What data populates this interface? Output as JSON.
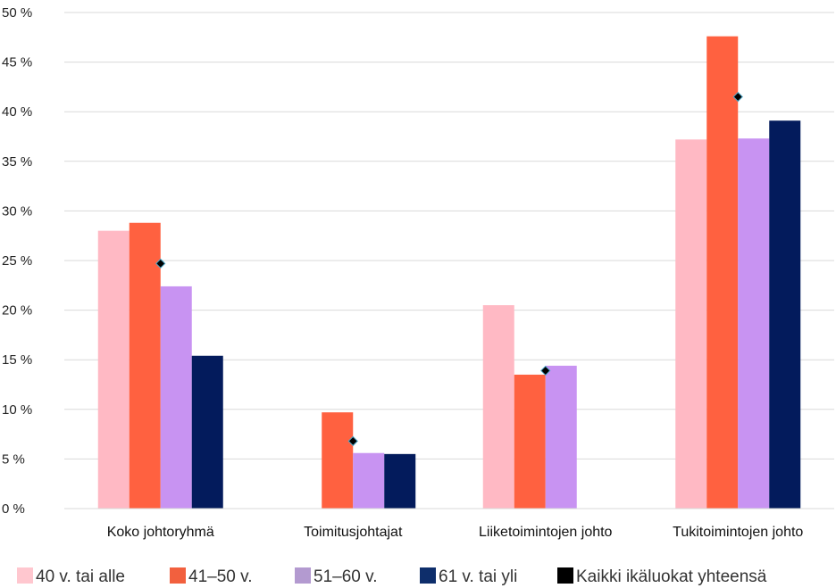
{
  "chart_data": {
    "type": "bar",
    "title": "",
    "xlabel": "",
    "ylabel": "",
    "ylim": [
      0,
      50
    ],
    "yticks": [
      "0 %",
      "5 %",
      "10 %",
      "15 %",
      "20 %",
      "25 %",
      "30 %",
      "35 %",
      "40 %",
      "45 %",
      "50 %"
    ],
    "grid": true,
    "legend_position": "bottom",
    "categories": [
      "Koko johtoryhmä",
      "Toimitusjohtajat",
      "Liiketoimintojen johto",
      "Tukitoimintojen johto"
    ],
    "series": [
      {
        "name": "40 v. tai alle",
        "color": "#ffb9c4",
        "values": [
          28.0,
          0,
          20.5,
          37.2
        ]
      },
      {
        "name": "41–50 v.",
        "color": "#ff6140",
        "values": [
          28.8,
          9.7,
          13.5,
          47.6
        ]
      },
      {
        "name": "51–60 v.",
        "color": "#c893f2",
        "values": [
          22.4,
          5.6,
          14.4,
          37.3
        ]
      },
      {
        "name": "61 v. tai yli",
        "color": "#031b5c",
        "values": [
          15.4,
          5.5,
          0,
          39.1
        ]
      }
    ],
    "total_series": {
      "name": "Kaikki ikäluokat yhteensä",
      "marker": "diamond",
      "color": "#000000",
      "values": [
        24.7,
        6.8,
        13.9,
        41.5
      ]
    },
    "legend_colors": {
      "s0": "#ffc7cf",
      "s1": "#f2603e",
      "s2": "#b39ad0",
      "s3": "#0e2e6b",
      "total": "#000000"
    }
  }
}
